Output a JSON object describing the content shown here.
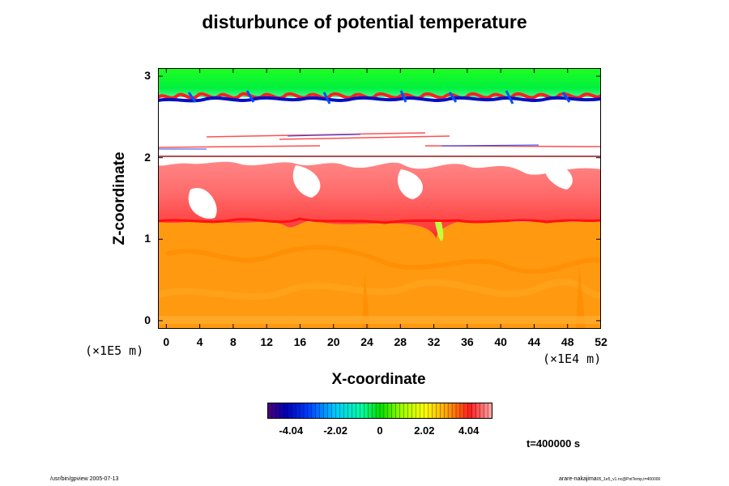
{
  "colors": {
    "frame": "#000000",
    "cold_core": "#0000a0",
    "neutral": "#00ff40",
    "warm_orange": "#ff9a10",
    "warm_red": "#ff3030",
    "warm_pink": "#ff8080"
  },
  "chart_data": {
    "type": "heatmap",
    "title": "disturbunce of potential temperature",
    "xlabel": "X-coordinate",
    "ylabel": "Z-coordinate",
    "x_scale_note": "(×1E4 m)",
    "y_scale_note": "(×1E5 m)",
    "xlim": [
      -1,
      52
    ],
    "ylim": [
      -0.1,
      3.1
    ],
    "x_ticks": [
      0,
      4,
      8,
      12,
      16,
      20,
      24,
      28,
      32,
      36,
      40,
      44,
      48,
      52
    ],
    "x_tick_labels": [
      "0",
      "4",
      "8",
      "12",
      "16",
      "20",
      "24",
      "28",
      "32",
      "36",
      "40",
      "44",
      "48",
      "52"
    ],
    "y_ticks": [
      0,
      1,
      2,
      3
    ],
    "y_tick_labels": [
      "0",
      "1",
      "2",
      "3"
    ],
    "colorbar": {
      "range": [
        -5.1,
        5.1
      ],
      "ticks": [
        -4.04,
        -2.02,
        0,
        2.02,
        4.04
      ],
      "tick_labels": [
        "-4.04",
        "-2.02",
        "0",
        "2.02",
        "4.04"
      ]
    },
    "time_label": "t=400000 s",
    "regions": [
      {
        "z": [
          -0.1,
          1.2
        ],
        "approx_value": 3.2
      },
      {
        "z": [
          1.2,
          1.35
        ],
        "approx_value": 4.3
      },
      {
        "z": [
          1.35,
          2.0
        ],
        "approx_value": 4.6
      },
      {
        "z": [
          2.0,
          2.6
        ],
        "approx_value": null
      },
      {
        "z": [
          2.6,
          2.75
        ],
        "approx_value": -4.0
      },
      {
        "z": [
          2.75,
          3.1
        ],
        "approx_value": 0.5
      }
    ]
  },
  "footer": {
    "left": "/usr/bin/gpview 2005-07-13",
    "right": "arare-nakajima",
    "right_small": "05_1e5_v1.nc@PotTemp,t=400000"
  }
}
